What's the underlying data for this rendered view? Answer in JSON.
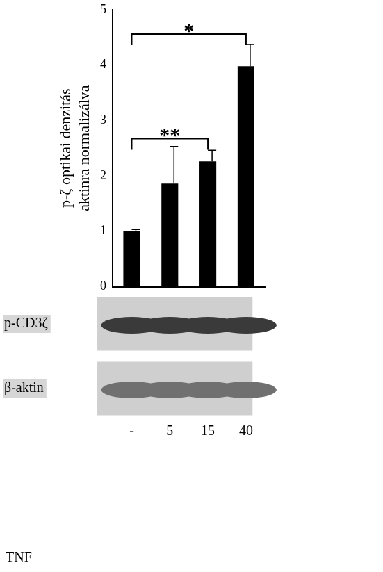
{
  "chart_data": {
    "type": "bar",
    "ylabel": [
      "p-ζ optikai denzitás",
      "aktinra normalizálva"
    ],
    "xlabel": "TNF",
    "categories": [
      "-",
      "5",
      "15",
      "40"
    ],
    "values": [
      1.0,
      1.86,
      2.26,
      3.98
    ],
    "errors": [
      0.03,
      0.67,
      0.2,
      0.39
    ],
    "color": "#000000",
    "ylim": [
      0,
      5
    ],
    "yticks": [
      0,
      1,
      2,
      3,
      4,
      5
    ],
    "grid": false,
    "annotations": [
      {
        "text": "*",
        "from": "-",
        "to": "40",
        "y": 4.56
      },
      {
        "text": "**",
        "from": "-",
        "to": "15",
        "y": 2.67
      }
    ],
    "blot_labels": [
      "p-CD3ζ",
      "β-aktin"
    ]
  }
}
